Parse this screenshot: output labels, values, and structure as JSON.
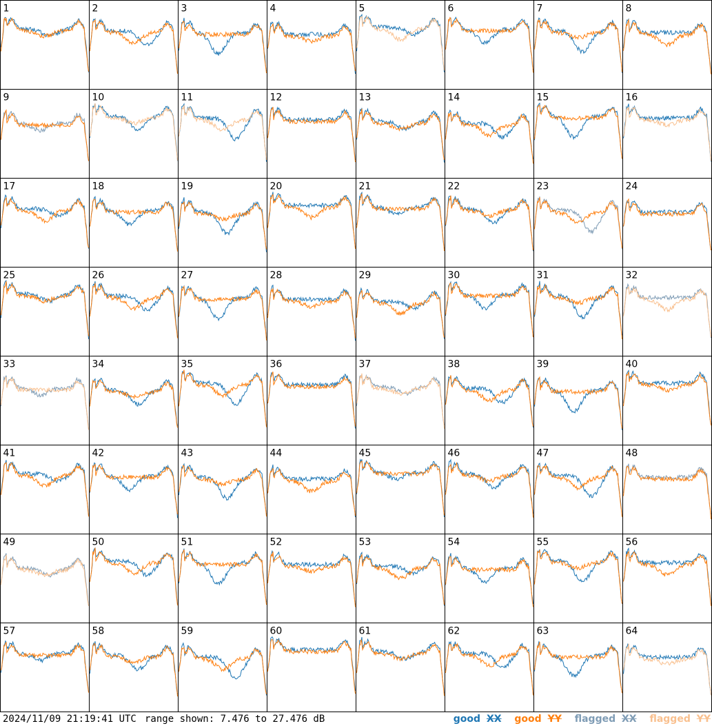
{
  "footer": {
    "timestamp": "2024/11/09 21:19:41 UTC",
    "range_text": "range shown: 7.476 to 27.476 dB"
  },
  "legend": [
    {
      "word": "good",
      "pol": "XX",
      "color": "#1f77b4"
    },
    {
      "word": "good",
      "pol": "YY",
      "color": "#ff7f0e"
    },
    {
      "word": "flagged",
      "pol": "XX",
      "color": "#7f9cb5"
    },
    {
      "word": "flagged",
      "pol": "YY",
      "color": "#f9c08f"
    }
  ],
  "chart_data": {
    "type": "line",
    "layout": "8x8 small multiples",
    "y_unit": "dB",
    "ylim": [
      7.476,
      27.476
    ],
    "grid": false,
    "panels": [
      {
        "label": "1",
        "xx": "good",
        "yy": "good"
      },
      {
        "label": "2",
        "xx": "good",
        "yy": "good"
      },
      {
        "label": "3",
        "xx": "good",
        "yy": "good"
      },
      {
        "label": "4",
        "xx": "good",
        "yy": "good"
      },
      {
        "label": "5",
        "xx": "good",
        "yy": "flagged"
      },
      {
        "label": "6",
        "xx": "good",
        "yy": "good"
      },
      {
        "label": "7",
        "xx": "good",
        "yy": "good"
      },
      {
        "label": "8",
        "xx": "good",
        "yy": "good"
      },
      {
        "label": "9",
        "xx": "flagged",
        "yy": "good"
      },
      {
        "label": "10",
        "xx": "good",
        "yy": "flagged"
      },
      {
        "label": "11",
        "xx": "good",
        "yy": "flagged"
      },
      {
        "label": "12",
        "xx": "good",
        "yy": "good"
      },
      {
        "label": "13",
        "xx": "good",
        "yy": "good"
      },
      {
        "label": "14",
        "xx": "good",
        "yy": "good"
      },
      {
        "label": "15",
        "xx": "good",
        "yy": "good"
      },
      {
        "label": "16",
        "xx": "good",
        "yy": "flagged"
      },
      {
        "label": "17",
        "xx": "good",
        "yy": "good"
      },
      {
        "label": "18",
        "xx": "good",
        "yy": "good"
      },
      {
        "label": "19",
        "xx": "good",
        "yy": "good"
      },
      {
        "label": "20",
        "xx": "good",
        "yy": "good"
      },
      {
        "label": "21",
        "xx": "good",
        "yy": "good"
      },
      {
        "label": "22",
        "xx": "good",
        "yy": "good"
      },
      {
        "label": "23",
        "xx": "flagged",
        "yy": "good"
      },
      {
        "label": "24",
        "xx": "good",
        "yy": "good"
      },
      {
        "label": "25",
        "xx": "good",
        "yy": "good"
      },
      {
        "label": "26",
        "xx": "good",
        "yy": "good"
      },
      {
        "label": "27",
        "xx": "good",
        "yy": "good"
      },
      {
        "label": "28",
        "xx": "good",
        "yy": "good"
      },
      {
        "label": "29",
        "xx": "good",
        "yy": "good"
      },
      {
        "label": "30",
        "xx": "good",
        "yy": "good"
      },
      {
        "label": "31",
        "xx": "good",
        "yy": "good"
      },
      {
        "label": "32",
        "xx": "flagged",
        "yy": "flagged"
      },
      {
        "label": "33",
        "xx": "flagged",
        "yy": "flagged"
      },
      {
        "label": "34",
        "xx": "good",
        "yy": "good"
      },
      {
        "label": "35",
        "xx": "good",
        "yy": "good"
      },
      {
        "label": "36",
        "xx": "good",
        "yy": "good"
      },
      {
        "label": "37",
        "xx": "flagged",
        "yy": "flagged"
      },
      {
        "label": "38",
        "xx": "good",
        "yy": "good"
      },
      {
        "label": "39",
        "xx": "good",
        "yy": "good"
      },
      {
        "label": "40",
        "xx": "good",
        "yy": "good"
      },
      {
        "label": "41",
        "xx": "good",
        "yy": "good"
      },
      {
        "label": "42",
        "xx": "good",
        "yy": "good"
      },
      {
        "label": "43",
        "xx": "good",
        "yy": "good"
      },
      {
        "label": "44",
        "xx": "good",
        "yy": "good"
      },
      {
        "label": "45",
        "xx": "good",
        "yy": "good"
      },
      {
        "label": "46",
        "xx": "good",
        "yy": "good"
      },
      {
        "label": "47",
        "xx": "good",
        "yy": "good"
      },
      {
        "label": "48",
        "xx": "flagged",
        "yy": "good"
      },
      {
        "label": "49",
        "xx": "flagged",
        "yy": "flagged"
      },
      {
        "label": "50",
        "xx": "good",
        "yy": "good"
      },
      {
        "label": "51",
        "xx": "good",
        "yy": "good"
      },
      {
        "label": "52",
        "xx": "good",
        "yy": "good"
      },
      {
        "label": "53",
        "xx": "good",
        "yy": "good"
      },
      {
        "label": "54",
        "xx": "good",
        "yy": "good"
      },
      {
        "label": "55",
        "xx": "good",
        "yy": "good"
      },
      {
        "label": "56",
        "xx": "good",
        "yy": "good"
      },
      {
        "label": "57",
        "xx": "good",
        "yy": "good"
      },
      {
        "label": "58",
        "xx": "good",
        "yy": "good"
      },
      {
        "label": "59",
        "xx": "good",
        "yy": "good"
      },
      {
        "label": "60",
        "xx": "good",
        "yy": "good"
      },
      {
        "label": "61",
        "xx": "good",
        "yy": "good"
      },
      {
        "label": "62",
        "xx": "good",
        "yy": "good"
      },
      {
        "label": "63",
        "xx": "good",
        "yy": "good"
      },
      {
        "label": "64",
        "xx": "good",
        "yy": "flagged"
      }
    ]
  }
}
